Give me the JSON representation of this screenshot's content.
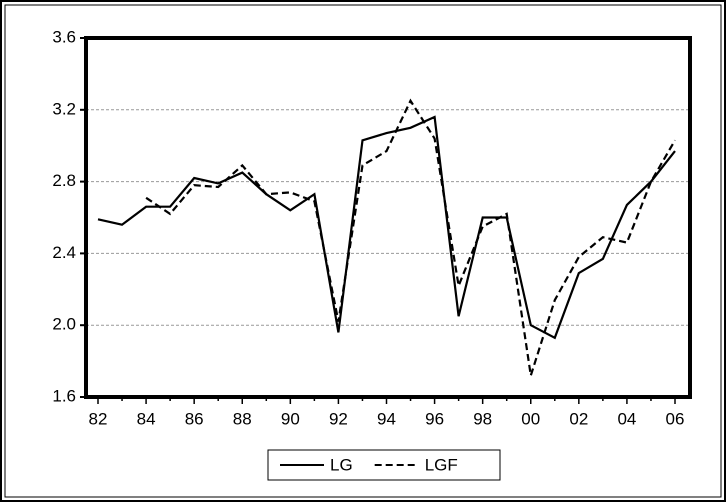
{
  "chart_data": {
    "type": "line",
    "categories": [
      "82",
      null,
      "84",
      null,
      "86",
      null,
      "88",
      null,
      "90",
      null,
      "92",
      null,
      "94",
      null,
      "96",
      null,
      "98",
      null,
      "00",
      null,
      "02",
      null,
      "04",
      null,
      "06"
    ],
    "series": [
      {
        "name": "LG",
        "color": "#000000",
        "line_style": "solid",
        "values": [
          2.59,
          2.56,
          2.66,
          2.66,
          2.82,
          2.79,
          2.85,
          2.73,
          2.64,
          2.73,
          1.96,
          3.03,
          3.07,
          3.1,
          3.16,
          2.05,
          2.6,
          2.6,
          2.0,
          1.93,
          2.29,
          2.37,
          2.67,
          2.8,
          2.97
        ]
      },
      {
        "name": "LGF",
        "color": "#000000",
        "line_style": "dashed",
        "values": [
          null,
          null,
          2.71,
          2.62,
          2.78,
          2.77,
          2.89,
          2.73,
          2.74,
          2.69,
          2.02,
          2.89,
          2.97,
          3.25,
          3.04,
          2.22,
          2.55,
          2.62,
          1.72,
          2.14,
          2.38,
          2.49,
          2.46,
          2.8,
          3.03
        ]
      }
    ],
    "ylim": [
      1.6,
      3.6
    ],
    "yticks": [
      1.6,
      {
        "value": 2,
        "label": "2.0"
      },
      2.4,
      2.8,
      3.2,
      3.6
    ],
    "grid": true,
    "legend": "bottom"
  }
}
